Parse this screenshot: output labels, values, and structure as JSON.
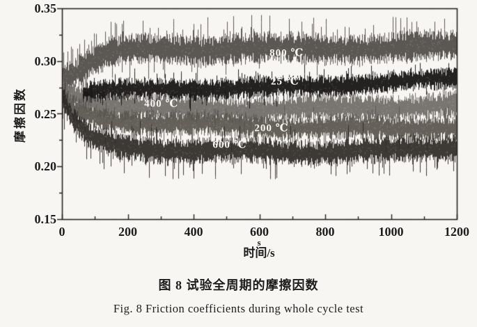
{
  "figure": {
    "caption_zh": "图 8  试验全周期的摩擦因数",
    "caption_en": "Fig. 8  Friction coefficients during whole cycle test"
  },
  "chart_data": {
    "type": "line",
    "title": "",
    "xlabel": "时间/s",
    "xlabel_super": "s",
    "ylabel": "摩擦因数",
    "xlim": [
      0,
      1200
    ],
    "ylim": [
      0.15,
      0.35
    ],
    "grid": false,
    "legend_position": "inline-labels-on-traces",
    "x_ticks": [
      {
        "value": 0,
        "label": "0"
      },
      {
        "value": 200,
        "label": "200"
      },
      {
        "value": 400,
        "label": "400"
      },
      {
        "value": 600,
        "label": "600"
      },
      {
        "value": 800,
        "label": "800"
      },
      {
        "value": 1000,
        "label": "1000"
      },
      {
        "value": 1200,
        "label": "1200"
      }
    ],
    "x_minor_ticks": [
      100,
      300,
      500,
      700,
      900,
      1100
    ],
    "y_ticks": [
      {
        "value": 0.35,
        "label": "0.35"
      },
      {
        "value": 0.3,
        "label": "0.30"
      },
      {
        "value": 0.25,
        "label": "0.25"
      },
      {
        "value": 0.2,
        "label": "0.20"
      },
      {
        "value": 0.15,
        "label": "0.15"
      }
    ],
    "y_minor_ticks": [
      0.325,
      0.275,
      0.225,
      0.175
    ],
    "theme": {
      "paper": "#f7f6f2",
      "axis": "#24211e",
      "text": "#1e1c1a",
      "trace_label": "#f8f7f4"
    },
    "series": [
      {
        "name": "800C",
        "label": "800 ℃",
        "color": "#4f4b48",
        "t_start": 0,
        "label_at": {
          "t": 683,
          "v": 0.308
        },
        "mean_points": [
          [
            0,
            0.284
          ],
          [
            40,
            0.289
          ],
          [
            90,
            0.3
          ],
          [
            150,
            0.308
          ],
          [
            250,
            0.3115
          ],
          [
            400,
            0.3105
          ],
          [
            550,
            0.312
          ],
          [
            700,
            0.3115
          ],
          [
            850,
            0.312
          ],
          [
            1000,
            0.3125
          ],
          [
            1200,
            0.3145
          ]
        ],
        "noise": {
          "amp": 0.0105,
          "wob": 0.0014,
          "spike_up_p": 0.1,
          "spike_dn_p": 0.03,
          "spike_gain": 1.7,
          "seed": 11
        }
      },
      {
        "name": "400C",
        "label": "400 ℃",
        "color": "#6f6b67",
        "t_start": 0,
        "label_at": {
          "t": 302,
          "v": 0.2595
        },
        "mean_points": [
          [
            0,
            0.2765
          ],
          [
            50,
            0.2665
          ],
          [
            120,
            0.259
          ],
          [
            250,
            0.2555
          ],
          [
            450,
            0.2545
          ],
          [
            700,
            0.2545
          ],
          [
            950,
            0.256
          ],
          [
            1200,
            0.258
          ]
        ],
        "noise": {
          "amp": 0.0092,
          "wob": 0.0015,
          "spike_up_p": 0.05,
          "spike_dn_p": 0.05,
          "spike_gain": 1.3,
          "seed": 22
        }
      },
      {
        "name": "200C",
        "label": "200 ℃",
        "color": "#59554f",
        "t_start": 0,
        "label_at": {
          "t": 637,
          "v": 0.2365
        },
        "mean_points": [
          [
            0,
            0.2625
          ],
          [
            50,
            0.2505
          ],
          [
            130,
            0.2445
          ],
          [
            300,
            0.241
          ],
          [
            550,
            0.2385
          ],
          [
            800,
            0.237
          ],
          [
            1000,
            0.236
          ],
          [
            1200,
            0.2375
          ]
        ],
        "noise": {
          "amp": 0.0085,
          "wob": 0.0015,
          "spike_up_p": 0.04,
          "spike_dn_p": 0.06,
          "spike_gain": 1.4,
          "seed": 33
        }
      },
      {
        "name": "600C",
        "label": "600 ℃",
        "color": "#2e2a27",
        "t_start": 0,
        "label_at": {
          "t": 510,
          "v": 0.2205
        },
        "mean_points": [
          [
            0,
            0.2665
          ],
          [
            30,
            0.2455
          ],
          [
            80,
            0.2275
          ],
          [
            160,
            0.219
          ],
          [
            300,
            0.216
          ],
          [
            500,
            0.2145
          ],
          [
            700,
            0.2135
          ],
          [
            900,
            0.2145
          ],
          [
            1050,
            0.2155
          ],
          [
            1200,
            0.2185
          ]
        ],
        "noise": {
          "amp": 0.009,
          "wob": 0.0013,
          "spike_up_p": 0.04,
          "spike_dn_p": 0.09,
          "spike_gain": 1.7,
          "seed": 44
        }
      },
      {
        "name": "25C",
        "label": "25 ℃",
        "color": "#121110",
        "t_start": 62,
        "label_at": {
          "t": 678,
          "v": 0.2805
        },
        "mean_points": [
          [
            62,
            0.2715
          ],
          [
            150,
            0.2725
          ],
          [
            350,
            0.2735
          ],
          [
            600,
            0.2745
          ],
          [
            800,
            0.2765
          ],
          [
            1000,
            0.28
          ],
          [
            1200,
            0.2835
          ]
        ],
        "noise": {
          "amp": 0.0072,
          "wob": 0.0012,
          "spike_up_p": 0.07,
          "spike_dn_p": 0.05,
          "spike_gain": 1.4,
          "seed": 55
        }
      }
    ]
  }
}
